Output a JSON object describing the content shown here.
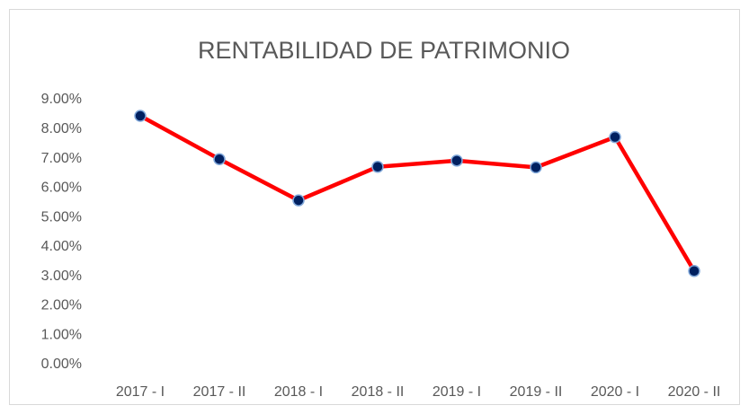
{
  "chart_data": {
    "type": "line",
    "title": "RENTABILIDAD DE PATRIMONIO",
    "categories": [
      "2017 - I",
      "2017 - II",
      "2018 - I",
      "2018 - II",
      "2019 - I",
      "2019 - II",
      "2020 - I",
      "2020 - II"
    ],
    "series": [
      {
        "name": "Rentabilidad de patrimonio",
        "color": "#ff0000",
        "marker_color": "#002060",
        "values": [
          8.45,
          6.98,
          5.58,
          6.72,
          6.93,
          6.7,
          7.73,
          3.18
        ]
      }
    ],
    "ylim": [
      0,
      9
    ],
    "yticks": [
      {
        "value": 0,
        "label": "0.00%"
      },
      {
        "value": 1,
        "label": "1.00%"
      },
      {
        "value": 2,
        "label": "2.00%"
      },
      {
        "value": 3,
        "label": "3.00%"
      },
      {
        "value": 4,
        "label": "4.00%"
      },
      {
        "value": 5,
        "label": "5.00%"
      },
      {
        "value": 6,
        "label": "6.00%"
      },
      {
        "value": 7,
        "label": "7.00%"
      },
      {
        "value": 8,
        "label": "8.00%"
      },
      {
        "value": 9,
        "label": "9.00%"
      }
    ],
    "grid": false,
    "legend": false
  }
}
